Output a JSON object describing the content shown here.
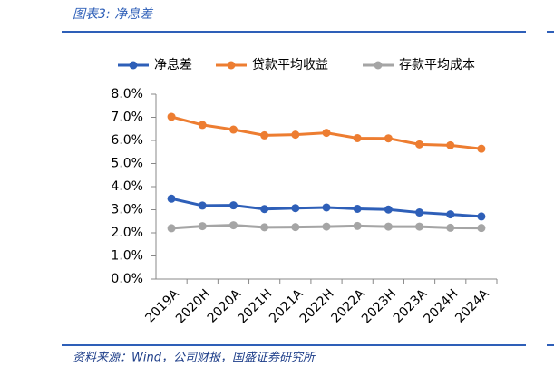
{
  "header": {
    "title": "图表3:  净息差"
  },
  "footer": {
    "source": "资料来源：Wind，公司财报，国盛证券研究所"
  },
  "chart_data": {
    "type": "line",
    "categories": [
      "2019A",
      "2020H",
      "2020A",
      "2021H",
      "2021A",
      "2022H",
      "2022A",
      "2023H",
      "2023A",
      "2024H",
      "2024A"
    ],
    "series": [
      {
        "name": "净息差",
        "color": "#2e5fb8",
        "values": [
          3.48,
          3.18,
          3.19,
          3.03,
          3.07,
          3.1,
          3.04,
          3.01,
          2.88,
          2.8,
          2.71
        ]
      },
      {
        "name": "贷款平均收益",
        "color": "#ed7d31",
        "values": [
          7.02,
          6.67,
          6.47,
          6.22,
          6.25,
          6.33,
          6.1,
          6.09,
          5.83,
          5.79,
          5.64
        ]
      },
      {
        "name": "存款平均成本",
        "color": "#a5a5a5",
        "values": [
          2.2,
          2.29,
          2.33,
          2.24,
          2.25,
          2.27,
          2.3,
          2.27,
          2.27,
          2.22,
          2.21
        ]
      }
    ],
    "ylim": [
      0,
      8
    ],
    "yticks": [
      {
        "value": 0,
        "label": "0.0%"
      },
      {
        "value": 1,
        "label": "1.0%"
      },
      {
        "value": 2,
        "label": "2.0%"
      },
      {
        "value": 3,
        "label": "3.0%"
      },
      {
        "value": 4,
        "label": "4.0%"
      },
      {
        "value": 5,
        "label": "5.0%"
      },
      {
        "value": 6,
        "label": "6.0%"
      },
      {
        "value": 7,
        "label": "7.0%"
      },
      {
        "value": 8,
        "label": "8.0%"
      }
    ],
    "grid": false,
    "legend": "top"
  }
}
